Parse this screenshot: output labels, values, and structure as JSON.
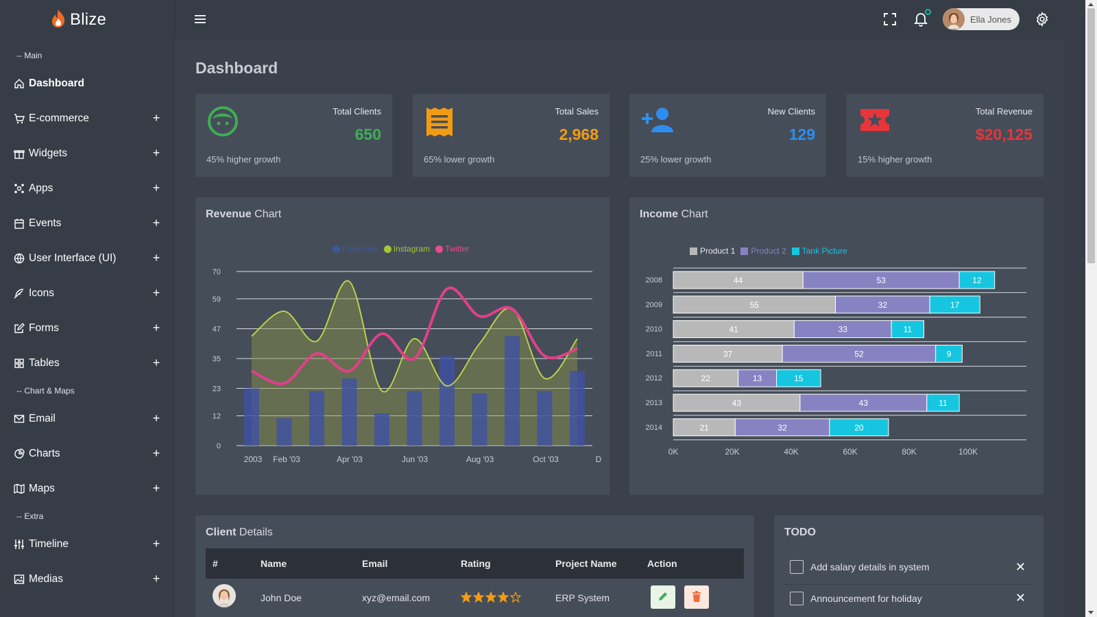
{
  "brand": {
    "name": "Blize"
  },
  "sidebar": {
    "section_main": "-- Main",
    "section_charts": "-- Chart & Maps",
    "section_extra": "-- Extra",
    "items": [
      {
        "label": "Dashboard",
        "icon": "home-icon",
        "active": true
      },
      {
        "label": "E-commerce",
        "icon": "cart-icon"
      },
      {
        "label": "Widgets",
        "icon": "gift-icon"
      },
      {
        "label": "Apps",
        "icon": "apps-icon"
      },
      {
        "label": "Events",
        "icon": "calendar-icon"
      },
      {
        "label": "User Interface (UI)",
        "icon": "globe-icon"
      },
      {
        "label": "Icons",
        "icon": "feather-icon"
      },
      {
        "label": "Forms",
        "icon": "edit-icon"
      },
      {
        "label": "Tables",
        "icon": "grid-icon"
      },
      {
        "label": "Email",
        "icon": "mail-icon"
      },
      {
        "label": "Charts",
        "icon": "pie-chart-icon"
      },
      {
        "label": "Maps",
        "icon": "map-icon"
      },
      {
        "label": "Timeline",
        "icon": "sliders-icon"
      },
      {
        "label": "Medias",
        "icon": "image-icon"
      }
    ],
    "expand_symbol": "+"
  },
  "header": {
    "user_name": "Ella Jones"
  },
  "page": {
    "title": "Dashboard"
  },
  "stats": [
    {
      "label": "Total Clients",
      "value": "650",
      "foot": "45% higher growth",
      "color": "#3fae55",
      "icon": "face-icon"
    },
    {
      "label": "Total Sales",
      "value": "2,968",
      "foot": "65% lower growth",
      "color": "#f39c12",
      "icon": "receipt-icon"
    },
    {
      "label": "New Clients",
      "value": "129",
      "foot": "25% lower growth",
      "color": "#2e8ef0",
      "icon": "user-plus-icon"
    },
    {
      "label": "Total Revenue",
      "value": "$20,125",
      "foot": "15% higher growth",
      "color": "#e8353a",
      "icon": "ticket-star-icon"
    }
  ],
  "revenue_card": {
    "title_bold": "Revenue",
    "title_rest": " Chart"
  },
  "income_card": {
    "title_bold": "Income",
    "title_rest": " Chart"
  },
  "chart_data": [
    {
      "type": "bar",
      "title": "Revenue Chart",
      "legend": [
        {
          "name": "Facebook",
          "color": "#3b5998"
        },
        {
          "name": "Instagram",
          "color": "#a4c639"
        },
        {
          "name": "Twitter",
          "color": "#e74c8b"
        }
      ],
      "ylim": [
        0,
        70
      ],
      "y_ticks": [
        "0",
        "12",
        "23",
        "35",
        "47",
        "59",
        "70"
      ],
      "x_tick_labels": [
        "2003",
        "Feb '03",
        "Apr '03",
        "Jun '03",
        "Aug '03",
        "Oct '03",
        "D"
      ],
      "series": [
        {
          "name": "Facebook",
          "kind": "bar",
          "values": [
            23,
            11,
            22,
            27,
            13,
            22,
            36,
            21,
            44,
            22,
            30
          ]
        },
        {
          "name": "Instagram",
          "kind": "area",
          "values": [
            44,
            54,
            42,
            66,
            22,
            43,
            24,
            41,
            55,
            27,
            43
          ]
        },
        {
          "name": "Twitter",
          "kind": "line",
          "values": [
            30,
            25,
            37,
            30,
            45,
            35,
            63,
            52,
            55,
            36,
            39
          ]
        }
      ],
      "grid": true
    },
    {
      "type": "bar",
      "orientation": "horizontal",
      "stacked": true,
      "title": "Income Chart",
      "categories": [
        "2008",
        "2009",
        "2010",
        "2011",
        "2012",
        "2013",
        "2014"
      ],
      "series": [
        {
          "name": "Product 1",
          "color": "#b8b8b8",
          "values": [
            44,
            55,
            41,
            37,
            22,
            43,
            21
          ]
        },
        {
          "name": "Product 2",
          "color": "#8783c2",
          "values": [
            53,
            32,
            33,
            52,
            13,
            43,
            32
          ]
        },
        {
          "name": "Tank Picture",
          "color": "#16c6e0",
          "values": [
            12,
            17,
            11,
            9,
            15,
            11,
            20
          ]
        }
      ],
      "x_tick_labels": [
        "0K",
        "20K",
        "40K",
        "60K",
        "80K",
        "100K"
      ],
      "xlim": [
        0,
        120
      ],
      "grid": true
    }
  ],
  "client_card": {
    "title_bold": "Client",
    "title_rest": " Details",
    "headers": [
      "#",
      "Name",
      "Email",
      "Rating",
      "Project Name",
      "Action"
    ],
    "rows": [
      {
        "name": "John Doe",
        "email": "xyz@email.com",
        "rating": 4,
        "rating_max": 5,
        "project": "ERP System"
      }
    ]
  },
  "todo_card": {
    "title": "TODO",
    "items": [
      {
        "label": "Add salary details in system"
      },
      {
        "label": "Announcement for holiday"
      }
    ],
    "close_symbol": "✕"
  }
}
